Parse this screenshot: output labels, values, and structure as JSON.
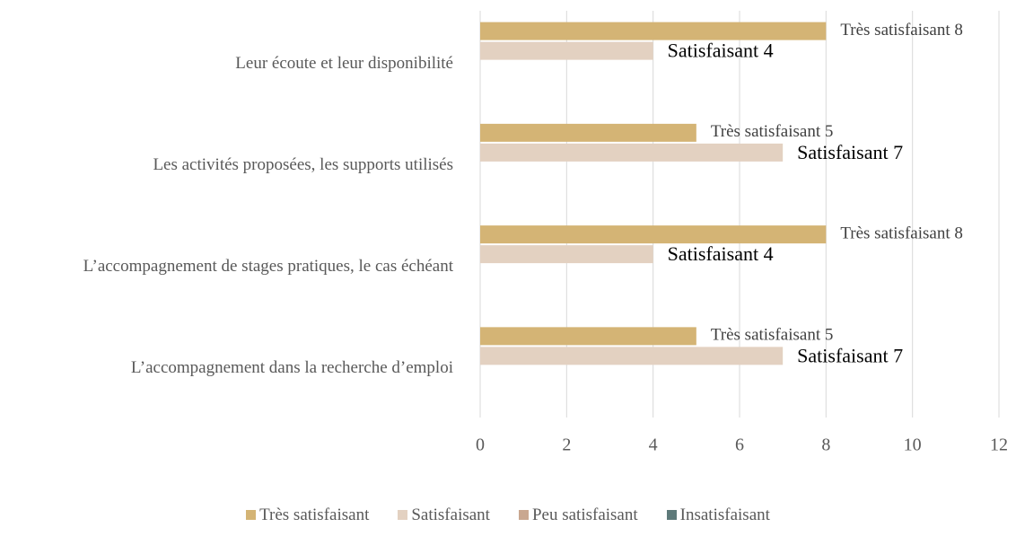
{
  "chart_data": {
    "type": "bar",
    "orientation": "horizontal",
    "categories": [
      "Leur écoute et leur disponibilité",
      "Les activités proposées, les supports utilisés",
      "L’accompagnement de stages pratiques, le cas échéant",
      "L’accompagnement dans la recherche d’emploi"
    ],
    "series": [
      {
        "name": "Très satisfaisant",
        "color": "#d4b475",
        "values": [
          8,
          5,
          8,
          5
        ],
        "value_labels": [
          "Très satisfaisant 8",
          "Très satisfaisant 5",
          "Très satisfaisant 8",
          "Très satisfaisant 5"
        ]
      },
      {
        "name": "Satisfaisant",
        "color": "#e3d1c1",
        "values": [
          4,
          7,
          4,
          7
        ],
        "value_labels": [
          "Satisfaisant 4",
          "Satisfaisant 7",
          "Satisfaisant 4",
          "Satisfaisant 7"
        ]
      },
      {
        "name": "Peu satisfaisant",
        "color": "#c9a790",
        "values": [
          null,
          null,
          null,
          null
        ]
      },
      {
        "name": "Insatisfaisant",
        "color": "#5e7a7a",
        "values": [
          null,
          null,
          null,
          null
        ]
      }
    ],
    "xlim": [
      0,
      12
    ],
    "xticks": [
      0,
      2,
      4,
      6,
      8,
      10,
      12
    ],
    "grid": true,
    "legend": "bottom"
  }
}
